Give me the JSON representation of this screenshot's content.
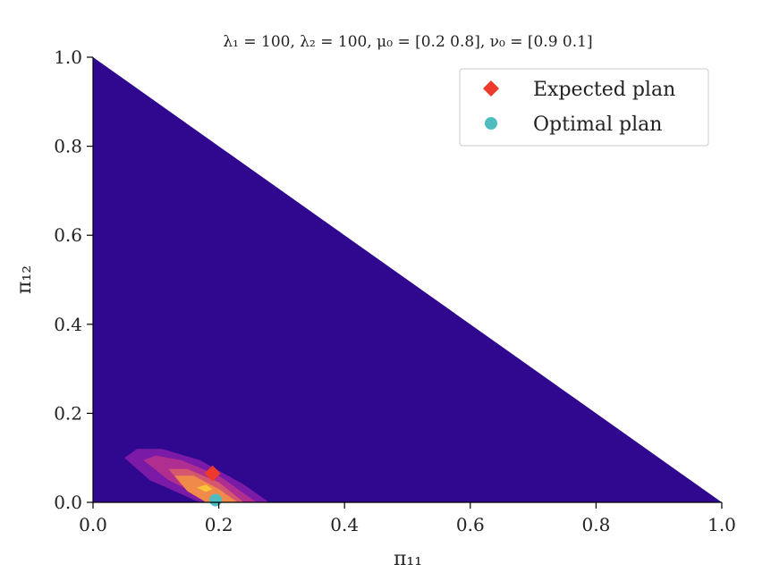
{
  "chart_data": {
    "type": "contour",
    "title": "λ₁ = 100, λ₂ = 100, μ₀ = [0.2 0.8], ν₀ = [0.9 0.1]",
    "xlabel": "π₁₁",
    "ylabel": "π₁₂",
    "xlim": [
      0.0,
      1.0
    ],
    "ylim": [
      0.0,
      1.0
    ],
    "x_ticks": [
      "0.0",
      "0.2",
      "0.4",
      "0.6",
      "0.8",
      "1.0"
    ],
    "y_ticks": [
      "0.0",
      "0.2",
      "0.4",
      "0.6",
      "0.8",
      "1.0"
    ],
    "x_tick_values": [
      0.0,
      0.2,
      0.4,
      0.6,
      0.8,
      1.0
    ],
    "y_tick_values": [
      0.0,
      0.2,
      0.4,
      0.6,
      0.8,
      1.0
    ],
    "domain": "simplex: π₁₁ + π₁₂ ≤ 1",
    "background_color": "#30078f",
    "contour_levels": [
      {
        "color": "#30078f",
        "points": [
          [
            0,
            0
          ],
          [
            1,
            0
          ],
          [
            0,
            1
          ]
        ]
      },
      {
        "color": "#7a1aa6",
        "points": [
          [
            0.05,
            0.1
          ],
          [
            0.07,
            0.12
          ],
          [
            0.11,
            0.12
          ],
          [
            0.17,
            0.095
          ],
          [
            0.24,
            0.04
          ],
          [
            0.28,
            0.0
          ],
          [
            0.17,
            0.0
          ],
          [
            0.09,
            0.05
          ]
        ]
      },
      {
        "color": "#b02e90",
        "points": [
          [
            0.08,
            0.095
          ],
          [
            0.1,
            0.105
          ],
          [
            0.14,
            0.095
          ],
          [
            0.2,
            0.06
          ],
          [
            0.26,
            0.0
          ],
          [
            0.19,
            0.0
          ],
          [
            0.12,
            0.05
          ]
        ]
      },
      {
        "color": "#d5566f",
        "points": [
          [
            0.12,
            0.075
          ],
          [
            0.15,
            0.075
          ],
          [
            0.2,
            0.045
          ],
          [
            0.24,
            0.0
          ],
          [
            0.19,
            0.0
          ],
          [
            0.14,
            0.04
          ]
        ]
      },
      {
        "color": "#f08a4b",
        "points": [
          [
            0.13,
            0.06
          ],
          [
            0.16,
            0.06
          ],
          [
            0.2,
            0.03
          ],
          [
            0.23,
            0.0
          ],
          [
            0.18,
            0.0
          ],
          [
            0.15,
            0.025
          ]
        ]
      },
      {
        "color": "#fbc337",
        "points": [
          [
            0.165,
            0.033
          ],
          [
            0.18,
            0.04
          ],
          [
            0.19,
            0.03
          ],
          [
            0.18,
            0.023
          ]
        ]
      }
    ],
    "series": [
      {
        "name": "Expected plan",
        "marker": "diamond",
        "color": "#ee3a2c",
        "x": [
          0.19
        ],
        "y": [
          0.065
        ]
      },
      {
        "name": "Optimal plan",
        "marker": "circle",
        "color": "#4fbdbf",
        "x": [
          0.195
        ],
        "y": [
          0.005
        ]
      }
    ],
    "legend": {
      "position": "top-right",
      "entries": [
        {
          "label": "Expected plan",
          "marker": "diamond",
          "color": "#ee3a2c"
        },
        {
          "label": "Optimal plan",
          "marker": "circle",
          "color": "#4fbdbf"
        }
      ]
    }
  }
}
